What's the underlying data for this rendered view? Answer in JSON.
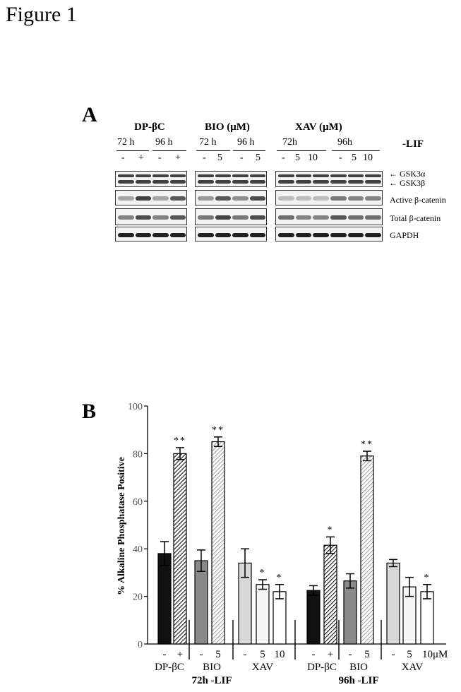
{
  "figure_title": "Figure 1",
  "panel_a": {
    "letter": "A",
    "group_labels": [
      "DP-βC",
      "BIO (μM)",
      "XAV (μM)"
    ],
    "time_labels": [
      "72 h",
      "96 h",
      "72 h",
      "96 h",
      "72h",
      "96h"
    ],
    "condition": "-LIF",
    "lane_labels": {
      "dp": [
        "-",
        "+",
        "-",
        "+"
      ],
      "bio": [
        "-",
        "5",
        "-",
        "5"
      ],
      "xav": [
        "-",
        "5",
        "10",
        "-",
        "5",
        "10"
      ]
    },
    "proteins": [
      "GSK3α",
      "GSK3β",
      "Active β-catenin",
      "Total β-catenin",
      "GAPDH"
    ]
  },
  "panel_b": {
    "letter": "B",
    "chart_data": {
      "type": "bar",
      "ylabel": "% Alkaline Phosphatase Positive",
      "ylim": [
        0,
        100
      ],
      "yticks": [
        0,
        20,
        40,
        60,
        80,
        100
      ],
      "bars": [
        {
          "group": "DP-βC",
          "time": "72h",
          "treatment": "-",
          "value": 38,
          "error": 5,
          "sig": "",
          "fill": "#111111"
        },
        {
          "group": "DP-βC",
          "time": "72h",
          "treatment": "+",
          "value": 80,
          "error": 2.5,
          "sig": "**",
          "fill": "hatch-dark"
        },
        {
          "group": "BIO",
          "time": "72h",
          "treatment": "-",
          "value": 35,
          "error": 4.5,
          "sig": "",
          "fill": "#8a8a8a"
        },
        {
          "group": "BIO",
          "time": "72h",
          "treatment": "5",
          "value": 85,
          "error": 2,
          "sig": "**",
          "fill": "hatch-light"
        },
        {
          "group": "XAV",
          "time": "72h",
          "treatment": "-",
          "value": 34,
          "error": 6,
          "sig": "",
          "fill": "#d8d8d8"
        },
        {
          "group": "XAV",
          "time": "72h",
          "treatment": "5",
          "value": 25,
          "error": 2,
          "sig": "*",
          "fill": "#f5f5f5"
        },
        {
          "group": "XAV",
          "time": "72h",
          "treatment": "10",
          "value": 22,
          "error": 3,
          "sig": "*",
          "fill": "#ffffff"
        },
        {
          "group": "DP-βC",
          "time": "96h",
          "treatment": "-",
          "value": 22.5,
          "error": 2,
          "sig": "",
          "fill": "#111111"
        },
        {
          "group": "DP-βC",
          "time": "96h",
          "treatment": "+",
          "value": 41.5,
          "error": 3.5,
          "sig": "*",
          "fill": "hatch-dark"
        },
        {
          "group": "BIO",
          "time": "96h",
          "treatment": "-",
          "value": 26.5,
          "error": 3,
          "sig": "",
          "fill": "#8a8a8a"
        },
        {
          "group": "BIO",
          "time": "96h",
          "treatment": "5",
          "value": 79,
          "error": 2,
          "sig": "**",
          "fill": "hatch-light"
        },
        {
          "group": "XAV",
          "time": "96h",
          "treatment": "-",
          "value": 34,
          "error": 1.5,
          "sig": "",
          "fill": "#d8d8d8"
        },
        {
          "group": "XAV",
          "time": "96h",
          "treatment": "5",
          "value": 24,
          "error": 4,
          "sig": "",
          "fill": "#f5f5f5"
        },
        {
          "group": "XAV",
          "time": "96h",
          "treatment": "10",
          "value": 22,
          "error": 3,
          "sig": "*",
          "fill": "#ffffff"
        }
      ],
      "treatment_labels": [
        "-",
        "+",
        "-",
        "5",
        "-",
        "5",
        "10",
        "-",
        "+",
        "-",
        "5",
        "-",
        "5",
        "10μM"
      ],
      "group_labels": [
        "DP-βC",
        "BIO",
        "XAV",
        "DP-βC",
        "BIO",
        "XAV"
      ],
      "time_labels": [
        "72h -LIF",
        "96h -LIF"
      ]
    }
  }
}
